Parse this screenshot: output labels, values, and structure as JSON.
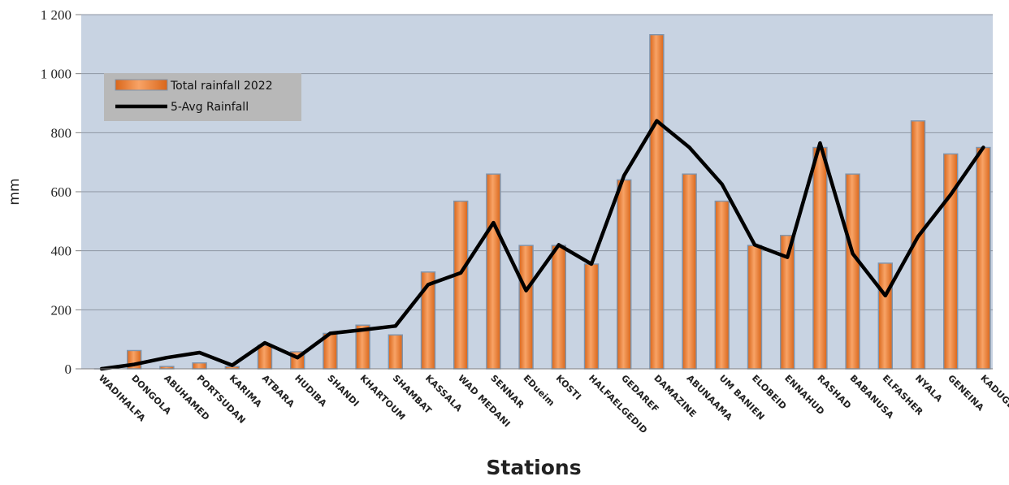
{
  "chart_data": {
    "type": "bar",
    "title": "",
    "xlabel": "Stations",
    "ylabel": "mm",
    "ylim": [
      0,
      1200
    ],
    "yticks": [
      0,
      200,
      400,
      600,
      800,
      1000,
      1200
    ],
    "ytick_labels": [
      "0",
      "200",
      "400",
      "600",
      "800",
      "1 000",
      "1 200"
    ],
    "grid": "horizontal",
    "legend_position": "top-left",
    "categories": [
      "WADIHALFA",
      "DONGOLA",
      "ABUHAMED",
      "PORTSUDAN",
      "KARIMA",
      "ATBARA",
      "HUDIBA",
      "SHANDI",
      "KHARTOUM",
      "SHAMBAT",
      "KASSALA",
      "WAD MEDANI",
      "SENNAR",
      "EDueim",
      "KOSTI",
      "HALFAELGEDID",
      "GEDAREF",
      "DAMAZINE",
      "ABUNAAMA",
      "UM BANIEN",
      "ELOBEID",
      "ENNAHUD",
      "RASHAD",
      "BABANUSA",
      "ELFASHER",
      "NYALA",
      "GENEINA",
      "KADUGLI"
    ],
    "series": [
      {
        "name": "Total rainfall 2022",
        "kind": "bar",
        "color": "#f08a35",
        "values": [
          0,
          62,
          8,
          20,
          8,
          80,
          58,
          120,
          148,
          115,
          328,
          568,
          660,
          418,
          418,
          355,
          640,
          1132,
          660,
          568,
          418,
          452,
          750,
          660,
          358,
          840,
          728,
          750
        ]
      },
      {
        "name": "5-Avg Rainfall",
        "kind": "line",
        "color": "#000000",
        "values": [
          0,
          15,
          38,
          55,
          12,
          88,
          38,
          120,
          132,
          145,
          285,
          325,
          495,
          265,
          420,
          355,
          655,
          840,
          750,
          625,
          420,
          378,
          765,
          390,
          248,
          448,
          590,
          750
        ]
      }
    ]
  },
  "colors": {
    "plot_background": "#c8d3e2",
    "gridline": "#8e96a3",
    "bar_fill": "#f08a35",
    "bar_edge": "#7e94ad",
    "line": "#000000",
    "legend_background": "#b8b8b8"
  }
}
